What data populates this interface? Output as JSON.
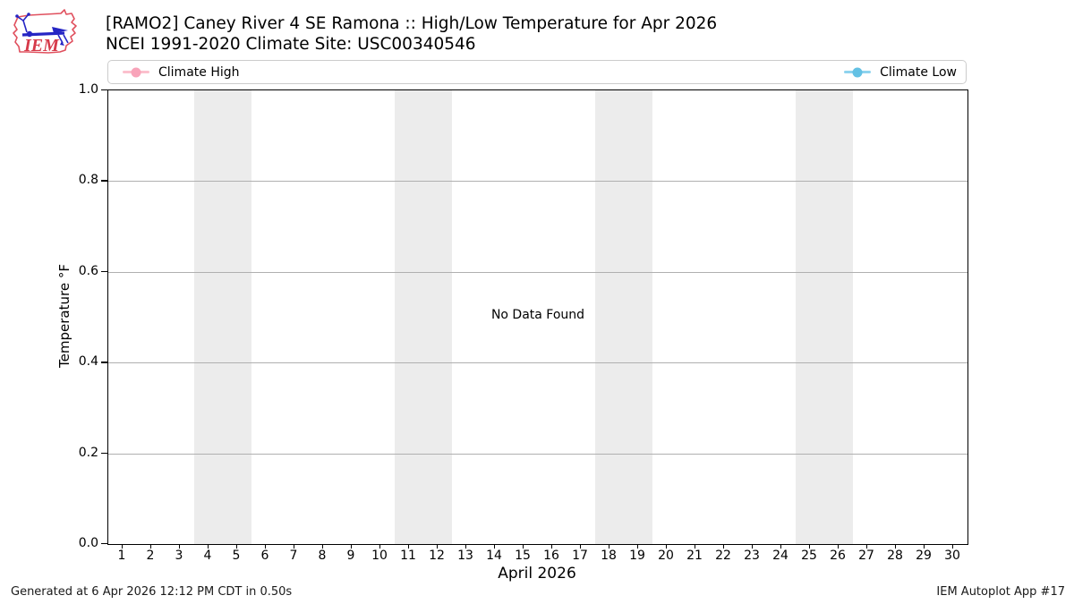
{
  "logo": {
    "text": "IEM"
  },
  "header": {
    "title": "[RAMO2] Caney River 4 SE Ramona :: High/Low Temperature for Apr 2026",
    "subtitle": "NCEI 1991-2020 Climate Site: USC00340546"
  },
  "legend": {
    "items": [
      {
        "label": "Climate High",
        "line_color": "#fbc0cd",
        "dot_color": "#f8a3b9"
      },
      {
        "label": "Climate Low",
        "line_color": "#8ed3ee",
        "dot_color": "#63c1e4"
      }
    ]
  },
  "chart_data": {
    "type": "line",
    "title": "[RAMO2] Caney River 4 SE Ramona :: High/Low Temperature for Apr 2026",
    "subtitle": "NCEI 1991-2020 Climate Site: USC00340546",
    "xlabel": "April 2026",
    "ylabel": "Temperature °F",
    "xlim": [
      0.5,
      30.5
    ],
    "ylim": [
      0.0,
      1.0
    ],
    "xticks": [
      1,
      2,
      3,
      4,
      5,
      6,
      7,
      8,
      9,
      10,
      11,
      12,
      13,
      14,
      15,
      16,
      17,
      18,
      19,
      20,
      21,
      22,
      23,
      24,
      25,
      26,
      27,
      28,
      29,
      30
    ],
    "yticks": [
      "0.0",
      "0.2",
      "0.4",
      "0.6",
      "0.8",
      "1.0"
    ],
    "series": [
      {
        "name": "Climate High",
        "color": "#fbc0cd",
        "values": []
      },
      {
        "name": "Climate Low",
        "color": "#8ed3ee",
        "values": []
      }
    ],
    "annotation": "No Data Found",
    "weekend_bands": [
      [
        3.5,
        5.5
      ],
      [
        10.5,
        12.5
      ],
      [
        17.5,
        19.5
      ],
      [
        24.5,
        26.5
      ]
    ],
    "band_color": "#ececec",
    "grid": true,
    "legend_position": "top"
  },
  "footer": {
    "left": "Generated at 6 Apr 2026 12:12 PM CDT in 0.50s",
    "right": "IEM Autoplot App #17"
  }
}
